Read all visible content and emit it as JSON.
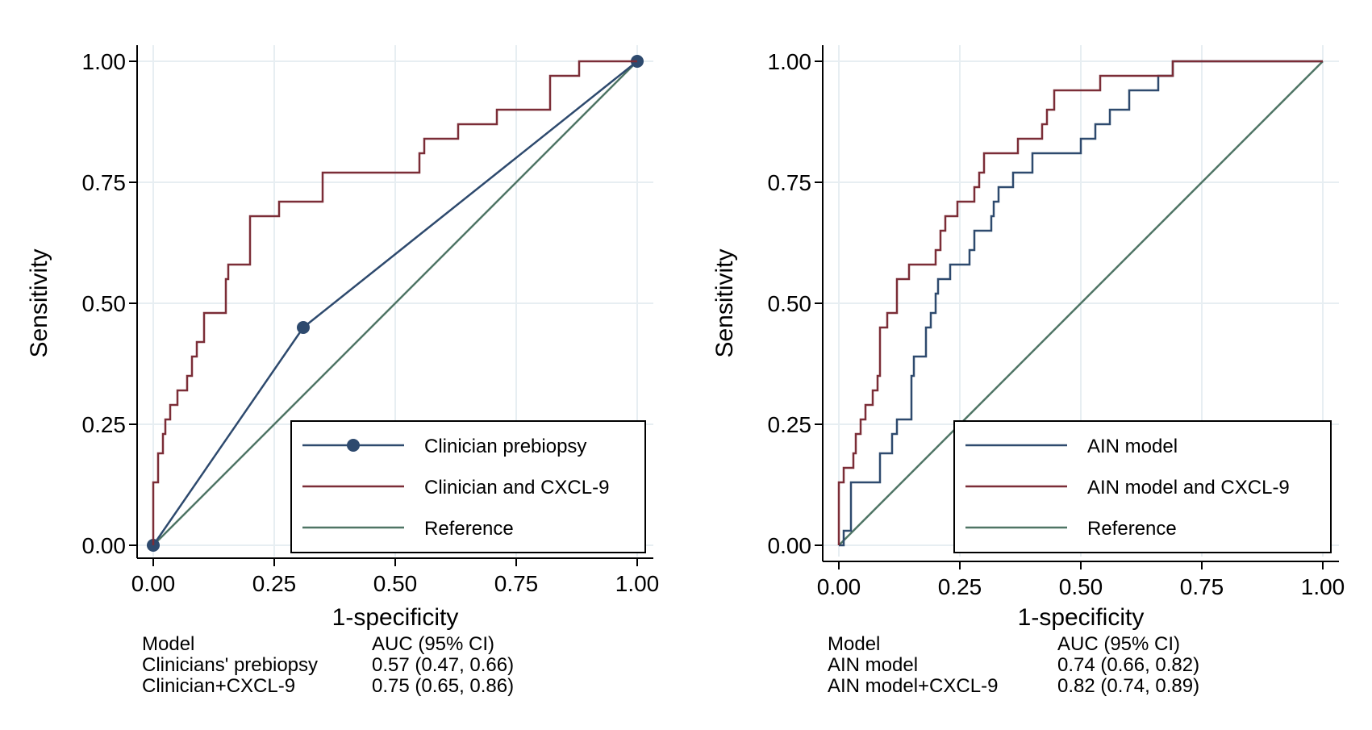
{
  "colors": {
    "navy": "#2e4a6e",
    "maroon": "#7b2d37",
    "green": "#4f7565",
    "grid": "#e7eef2",
    "axis": "#000000"
  },
  "chart_data": [
    {
      "type": "line",
      "xlabel": "1-specificity",
      "ylabel": "Sensitivity",
      "xlim": [
        0,
        1
      ],
      "ylim": [
        0,
        1
      ],
      "x_ticks": [
        "0.00",
        "0.25",
        "0.50",
        "0.75",
        "1.00"
      ],
      "y_ticks": [
        "0.00",
        "0.25",
        "0.50",
        "0.75",
        "1.00"
      ],
      "grid": true,
      "legend_position": "bottom-right",
      "series": [
        {
          "name": "Clinician prebiopsy",
          "color": "#2e4a6e",
          "markers": true,
          "points": [
            [
              0,
              0
            ],
            [
              0.31,
              0.45
            ],
            [
              1,
              1
            ]
          ]
        },
        {
          "name": "Clinician and CXCL-9",
          "color": "#7b2d37",
          "markers": false,
          "points": [
            [
              0,
              0
            ],
            [
              0,
              0.13
            ],
            [
              0.01,
              0.13
            ],
            [
              0.01,
              0.19
            ],
            [
              0.02,
              0.19
            ],
            [
              0.02,
              0.23
            ],
            [
              0.025,
              0.23
            ],
            [
              0.025,
              0.26
            ],
            [
              0.035,
              0.26
            ],
            [
              0.035,
              0.29
            ],
            [
              0.05,
              0.29
            ],
            [
              0.05,
              0.32
            ],
            [
              0.07,
              0.32
            ],
            [
              0.07,
              0.35
            ],
            [
              0.08,
              0.35
            ],
            [
              0.08,
              0.39
            ],
            [
              0.09,
              0.39
            ],
            [
              0.09,
              0.42
            ],
            [
              0.105,
              0.42
            ],
            [
              0.105,
              0.48
            ],
            [
              0.15,
              0.48
            ],
            [
              0.15,
              0.55
            ],
            [
              0.155,
              0.55
            ],
            [
              0.155,
              0.58
            ],
            [
              0.2,
              0.58
            ],
            [
              0.2,
              0.68
            ],
            [
              0.26,
              0.68
            ],
            [
              0.26,
              0.71
            ],
            [
              0.35,
              0.71
            ],
            [
              0.35,
              0.77
            ],
            [
              0.55,
              0.77
            ],
            [
              0.55,
              0.81
            ],
            [
              0.56,
              0.81
            ],
            [
              0.56,
              0.84
            ],
            [
              0.63,
              0.84
            ],
            [
              0.63,
              0.87
            ],
            [
              0.71,
              0.87
            ],
            [
              0.71,
              0.9
            ],
            [
              0.82,
              0.9
            ],
            [
              0.82,
              0.97
            ],
            [
              0.88,
              0.97
            ],
            [
              0.88,
              1.0
            ],
            [
              1,
              1
            ]
          ]
        },
        {
          "name": "Reference",
          "color": "#4f7565",
          "markers": false,
          "points": [
            [
              0,
              0
            ],
            [
              1,
              1
            ]
          ]
        }
      ],
      "table": {
        "header": [
          "Model",
          "AUC (95% CI)"
        ],
        "rows": [
          [
            "Clinicians' prebiopsy",
            "0.57 (0.47, 0.66)"
          ],
          [
            "Clinician+CXCL-9",
            "0.75 (0.65, 0.86)"
          ]
        ]
      }
    },
    {
      "type": "line",
      "xlabel": "1-specificity",
      "ylabel": "Sensitivity",
      "xlim": [
        0,
        1
      ],
      "ylim": [
        0,
        1
      ],
      "x_ticks": [
        "0.00",
        "0.25",
        "0.50",
        "0.75",
        "1.00"
      ],
      "y_ticks": [
        "0.00",
        "0.25",
        "0.50",
        "0.75",
        "1.00"
      ],
      "grid": true,
      "legend_position": "bottom-right",
      "series": [
        {
          "name": "AIN model",
          "color": "#2e4a6e",
          "markers": false,
          "points": [
            [
              0,
              0
            ],
            [
              0.01,
              0
            ],
            [
              0.01,
              0.03
            ],
            [
              0.025,
              0.03
            ],
            [
              0.025,
              0.13
            ],
            [
              0.085,
              0.13
            ],
            [
              0.085,
              0.19
            ],
            [
              0.11,
              0.19
            ],
            [
              0.11,
              0.23
            ],
            [
              0.12,
              0.23
            ],
            [
              0.12,
              0.26
            ],
            [
              0.15,
              0.26
            ],
            [
              0.15,
              0.35
            ],
            [
              0.155,
              0.35
            ],
            [
              0.155,
              0.39
            ],
            [
              0.18,
              0.39
            ],
            [
              0.18,
              0.45
            ],
            [
              0.19,
              0.45
            ],
            [
              0.19,
              0.48
            ],
            [
              0.2,
              0.48
            ],
            [
              0.2,
              0.52
            ],
            [
              0.205,
              0.52
            ],
            [
              0.205,
              0.55
            ],
            [
              0.23,
              0.55
            ],
            [
              0.23,
              0.58
            ],
            [
              0.27,
              0.58
            ],
            [
              0.27,
              0.61
            ],
            [
              0.28,
              0.61
            ],
            [
              0.28,
              0.65
            ],
            [
              0.315,
              0.65
            ],
            [
              0.315,
              0.68
            ],
            [
              0.32,
              0.68
            ],
            [
              0.32,
              0.71
            ],
            [
              0.33,
              0.71
            ],
            [
              0.33,
              0.74
            ],
            [
              0.36,
              0.74
            ],
            [
              0.36,
              0.77
            ],
            [
              0.4,
              0.77
            ],
            [
              0.4,
              0.81
            ],
            [
              0.5,
              0.81
            ],
            [
              0.5,
              0.84
            ],
            [
              0.53,
              0.84
            ],
            [
              0.53,
              0.87
            ],
            [
              0.56,
              0.87
            ],
            [
              0.56,
              0.9
            ],
            [
              0.6,
              0.9
            ],
            [
              0.6,
              0.94
            ],
            [
              0.66,
              0.94
            ],
            [
              0.66,
              0.97
            ],
            [
              0.69,
              0.97
            ],
            [
              0.69,
              1.0
            ],
            [
              1,
              1
            ]
          ]
        },
        {
          "name": "AIN model and CXCL-9",
          "color": "#7b2d37",
          "markers": false,
          "points": [
            [
              0,
              0
            ],
            [
              0,
              0.13
            ],
            [
              0.01,
              0.13
            ],
            [
              0.01,
              0.16
            ],
            [
              0.03,
              0.16
            ],
            [
              0.03,
              0.19
            ],
            [
              0.035,
              0.19
            ],
            [
              0.035,
              0.23
            ],
            [
              0.045,
              0.23
            ],
            [
              0.045,
              0.26
            ],
            [
              0.055,
              0.26
            ],
            [
              0.055,
              0.29
            ],
            [
              0.07,
              0.29
            ],
            [
              0.07,
              0.32
            ],
            [
              0.08,
              0.32
            ],
            [
              0.08,
              0.35
            ],
            [
              0.085,
              0.35
            ],
            [
              0.085,
              0.45
            ],
            [
              0.1,
              0.45
            ],
            [
              0.1,
              0.48
            ],
            [
              0.12,
              0.48
            ],
            [
              0.12,
              0.55
            ],
            [
              0.145,
              0.55
            ],
            [
              0.145,
              0.58
            ],
            [
              0.2,
              0.58
            ],
            [
              0.2,
              0.61
            ],
            [
              0.21,
              0.61
            ],
            [
              0.21,
              0.65
            ],
            [
              0.22,
              0.65
            ],
            [
              0.22,
              0.68
            ],
            [
              0.245,
              0.68
            ],
            [
              0.245,
              0.71
            ],
            [
              0.28,
              0.71
            ],
            [
              0.28,
              0.74
            ],
            [
              0.29,
              0.74
            ],
            [
              0.29,
              0.77
            ],
            [
              0.3,
              0.77
            ],
            [
              0.3,
              0.81
            ],
            [
              0.37,
              0.81
            ],
            [
              0.37,
              0.84
            ],
            [
              0.42,
              0.84
            ],
            [
              0.42,
              0.87
            ],
            [
              0.43,
              0.87
            ],
            [
              0.43,
              0.9
            ],
            [
              0.445,
              0.9
            ],
            [
              0.445,
              0.94
            ],
            [
              0.54,
              0.94
            ],
            [
              0.54,
              0.97
            ],
            [
              0.69,
              0.97
            ],
            [
              0.69,
              1.0
            ],
            [
              1,
              1
            ]
          ]
        },
        {
          "name": "Reference",
          "color": "#4f7565",
          "markers": false,
          "points": [
            [
              0,
              0
            ],
            [
              1,
              1
            ]
          ]
        }
      ],
      "table": {
        "header": [
          "Model",
          "AUC (95% CI)"
        ],
        "rows": [
          [
            "AIN model",
            "0.74 (0.66, 0.82)"
          ],
          [
            "AIN model+CXCL-9",
            "0.82 (0.74, 0.89)"
          ]
        ]
      }
    }
  ]
}
